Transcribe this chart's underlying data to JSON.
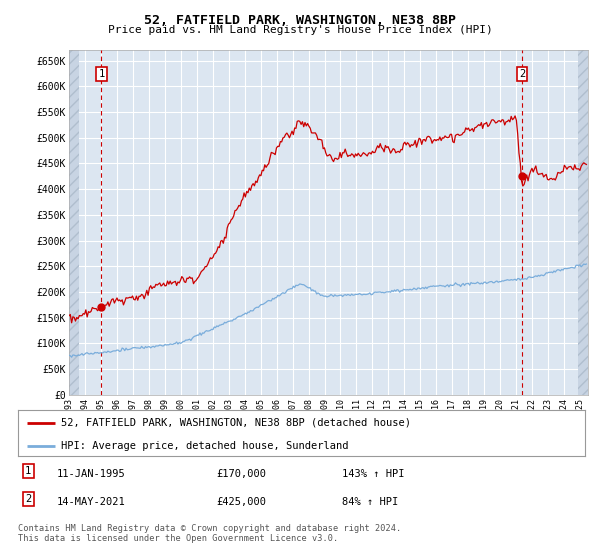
{
  "title1": "52, FATFIELD PARK, WASHINGTON, NE38 8BP",
  "title2": "Price paid vs. HM Land Registry's House Price Index (HPI)",
  "ylabel_ticks": [
    "£0",
    "£50K",
    "£100K",
    "£150K",
    "£200K",
    "£250K",
    "£300K",
    "£350K",
    "£400K",
    "£450K",
    "£500K",
    "£550K",
    "£600K",
    "£650K"
  ],
  "ytick_values": [
    0,
    50000,
    100000,
    150000,
    200000,
    250000,
    300000,
    350000,
    400000,
    450000,
    500000,
    550000,
    600000,
    650000
  ],
  "ylim": [
    0,
    670000
  ],
  "xlim_start": 1993.0,
  "xlim_end": 2025.5,
  "sale1_x": 1995.03,
  "sale1_y": 170000,
  "sale1_label": "1",
  "sale2_x": 2021.37,
  "sale2_y": 425000,
  "sale2_label": "2",
  "hpi_color": "#7aaddb",
  "price_color": "#cc0000",
  "legend_line1": "52, FATFIELD PARK, WASHINGTON, NE38 8BP (detached house)",
  "legend_line2": "HPI: Average price, detached house, Sunderland",
  "note1_label": "1",
  "note1_date": "11-JAN-1995",
  "note1_price": "£170,000",
  "note1_hpi": "143% ↑ HPI",
  "note2_label": "2",
  "note2_date": "14-MAY-2021",
  "note2_price": "£425,000",
  "note2_hpi": "84% ↑ HPI",
  "footer": "Contains HM Land Registry data © Crown copyright and database right 2024.\nThis data is licensed under the Open Government Licence v3.0.",
  "background_color": "#dce6f1",
  "fig_bg_color": "#ffffff",
  "grid_color": "#ffffff"
}
